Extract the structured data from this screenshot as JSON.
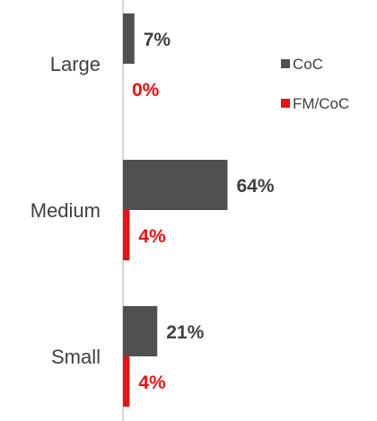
{
  "chart_data": {
    "type": "bar",
    "orientation": "horizontal",
    "categories": [
      "Large",
      "Medium",
      "Small"
    ],
    "series": [
      {
        "name": "CoC",
        "values": [
          7,
          64,
          21
        ],
        "color": "#505050",
        "labels": [
          "7%",
          "64%",
          "21%"
        ]
      },
      {
        "name": "FM/CoC",
        "values": [
          0,
          4,
          4
        ],
        "color": "#ee1111",
        "labels": [
          "0%",
          "4%",
          "4%"
        ]
      }
    ],
    "value_unit": "%",
    "xlim": [
      0,
      100
    ],
    "grid": false,
    "legend_position": "right",
    "title": "",
    "xlabel": "",
    "ylabel": ""
  }
}
